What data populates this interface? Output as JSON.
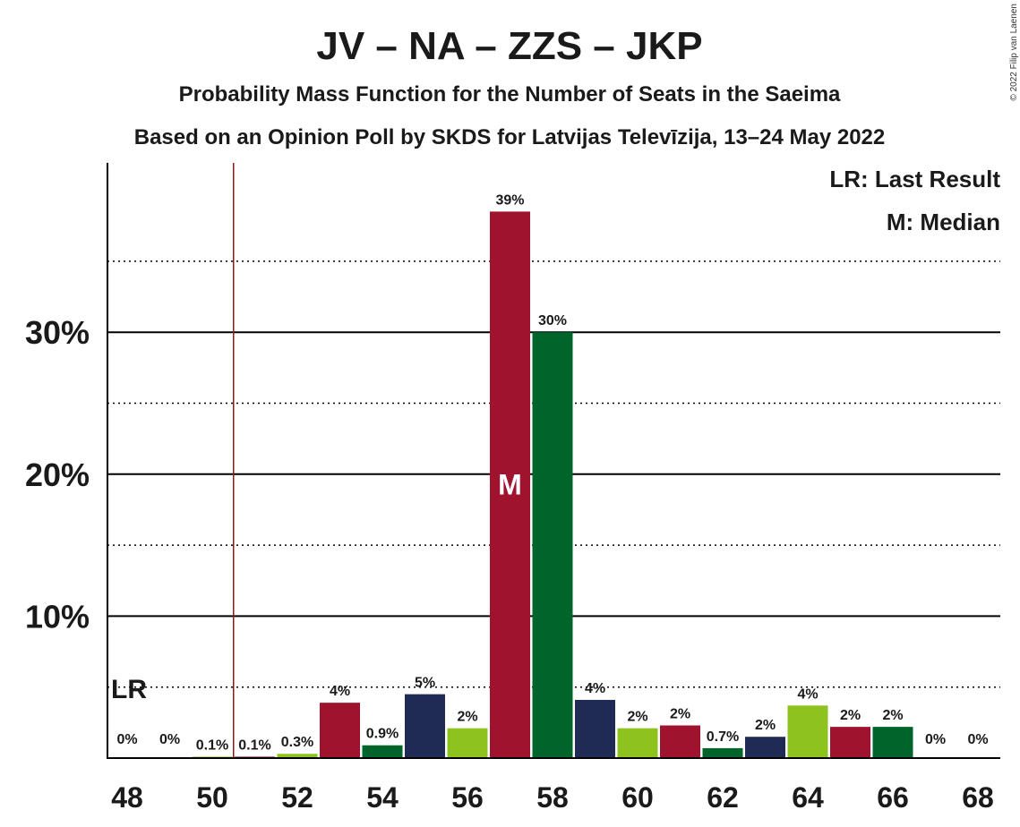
{
  "chart_data": {
    "type": "bar",
    "title": "JV – NA – ZZS – JKP",
    "subtitle": "Probability Mass Function for the Number of Seats in the Saeima",
    "subtitle2": "Based on an Opinion Poll by SKDS for Latvijas Televīzija, 13–24 May 2022",
    "copyright": "© 2022 Filip van Laenen",
    "legend": {
      "last_result": "LR: Last Result",
      "median": "M: Median",
      "placement": "top-right"
    },
    "lr_label": "LR",
    "median_label": "M",
    "last_result_seats": 50.5,
    "median_seat": 57,
    "x": [
      48,
      49,
      50,
      51,
      52,
      53,
      54,
      55,
      56,
      57,
      58,
      59,
      60,
      61,
      62,
      63,
      64,
      65,
      66,
      67,
      68
    ],
    "values": [
      0,
      0,
      0.1,
      0.1,
      0.3,
      3.9,
      0.9,
      4.5,
      2.1,
      38.5,
      30,
      4.1,
      2.1,
      2.3,
      0.7,
      1.5,
      3.7,
      2.2,
      2.2,
      0,
      0
    ],
    "data_labels": [
      "0%",
      "0%",
      "0.1%",
      "0.1%",
      "0.3%",
      "4%",
      "0.9%",
      "5%",
      "2%",
      "39%",
      "30%",
      "4%",
      "2%",
      "2%",
      "0.7%",
      "2%",
      "4%",
      "2%",
      "2%",
      "0%",
      "0%"
    ],
    "colors": [
      "#a0132f",
      "#00642b",
      "#8ec31f",
      "#a0132f",
      "#8ec31f",
      "#a0132f",
      "#00642b",
      "#1f2a55",
      "#8ec31f",
      "#a0132f",
      "#00642b",
      "#1f2a55",
      "#8ec31f",
      "#a0132f",
      "#00642b",
      "#1f2a55",
      "#8ec31f",
      "#a0132f",
      "#00642b",
      "#1f2a55",
      "#8ec31f"
    ],
    "x_ticks": [
      48,
      50,
      52,
      54,
      56,
      58,
      60,
      62,
      64,
      66,
      68
    ],
    "x_tick_labels": [
      "48",
      "50",
      "52",
      "54",
      "56",
      "58",
      "60",
      "62",
      "64",
      "66",
      "68"
    ],
    "y_ticks": [
      10,
      20,
      30
    ],
    "y_tick_labels": [
      "10%",
      "20%",
      "30%"
    ],
    "y_minor_ticks": [
      5,
      15,
      25,
      35
    ],
    "ylim": [
      0,
      42
    ],
    "grid": true,
    "lr_line_color": "#8b1a1a"
  }
}
